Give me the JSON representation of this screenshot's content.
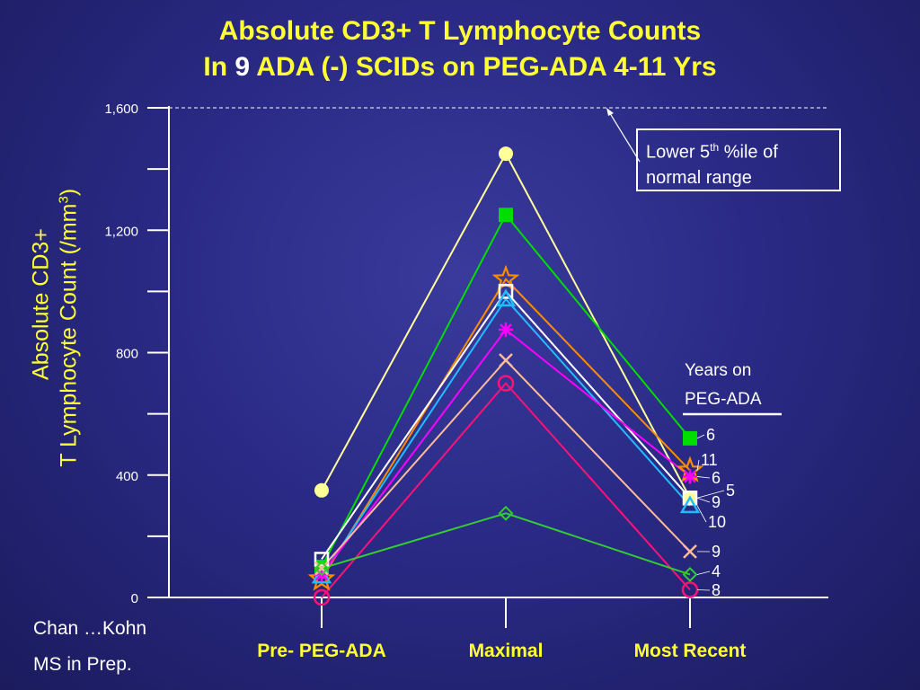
{
  "slide": {
    "title_line1": "Absolute CD3+ T Lymphocyte Counts",
    "title_line2_pre": "In",
    "title_line2_num": "9",
    "title_line2_post": "ADA (-) SCIDs on PEG-ADA 4-11 Yrs",
    "credit_line1": "Chan …Kohn",
    "credit_line2": "MS in Prep.",
    "note_line1_pre": "Lower 5",
    "note_line1_sup": "th",
    "note_line1_post": " %ile of",
    "note_line2": "normal range",
    "legend_title_line1": "Years on",
    "legend_title_line2": "PEG-ADA"
  },
  "colors": {
    "title": "#ffff33",
    "axis": "#ffffff",
    "background": "#2a2a86"
  },
  "chart_data": {
    "type": "line",
    "categories": [
      "Pre- PEG-ADA",
      "Maximal",
      "Most Recent"
    ],
    "ylabel_line1": "Absolute CD3+",
    "ylabel_line2_pre": "T Lymphocyte Count (/mm",
    "ylabel_line2_sup": "3",
    "ylabel_line2_post": ")",
    "ylim": [
      0,
      1600
    ],
    "yticks": [
      0,
      400,
      800,
      1200,
      1600
    ],
    "ytick_labels": [
      "0",
      "400",
      "800",
      "1,200",
      "1,600"
    ],
    "reference_line": {
      "value": 1600,
      "style": "dashed"
    },
    "series": [
      {
        "color": "#ffff99",
        "marker": "circle-filled",
        "values": [
          350,
          1450,
          325
        ],
        "years_label": "5"
      },
      {
        "color": "#00dd00",
        "marker": "square-filled",
        "values": [
          100,
          1250,
          520
        ],
        "years_label": "6"
      },
      {
        "color": "#ff8c00",
        "marker": "star",
        "values": [
          60,
          1040,
          415
        ],
        "years_label": "11"
      },
      {
        "color": "#ffffff",
        "marker": "square-open",
        "values": [
          125,
          1000,
          325
        ],
        "years_label": "9"
      },
      {
        "color": "#22bbff",
        "marker": "triangle-open",
        "values": [
          70,
          975,
          300
        ],
        "years_label": "10"
      },
      {
        "color": "#ff00ff",
        "marker": "asterisk",
        "values": [
          75,
          875,
          395
        ],
        "years_label": "6"
      },
      {
        "color": "#ffbb99",
        "marker": "x",
        "values": [
          95,
          775,
          150
        ],
        "years_label": "9"
      },
      {
        "color": "#ff1177",
        "marker": "circle-open",
        "values": [
          0,
          700,
          25
        ],
        "years_label": "8"
      },
      {
        "color": "#33cc33",
        "marker": "diamond-open",
        "values": [
          95,
          275,
          75
        ],
        "years_label": "4"
      }
    ]
  }
}
